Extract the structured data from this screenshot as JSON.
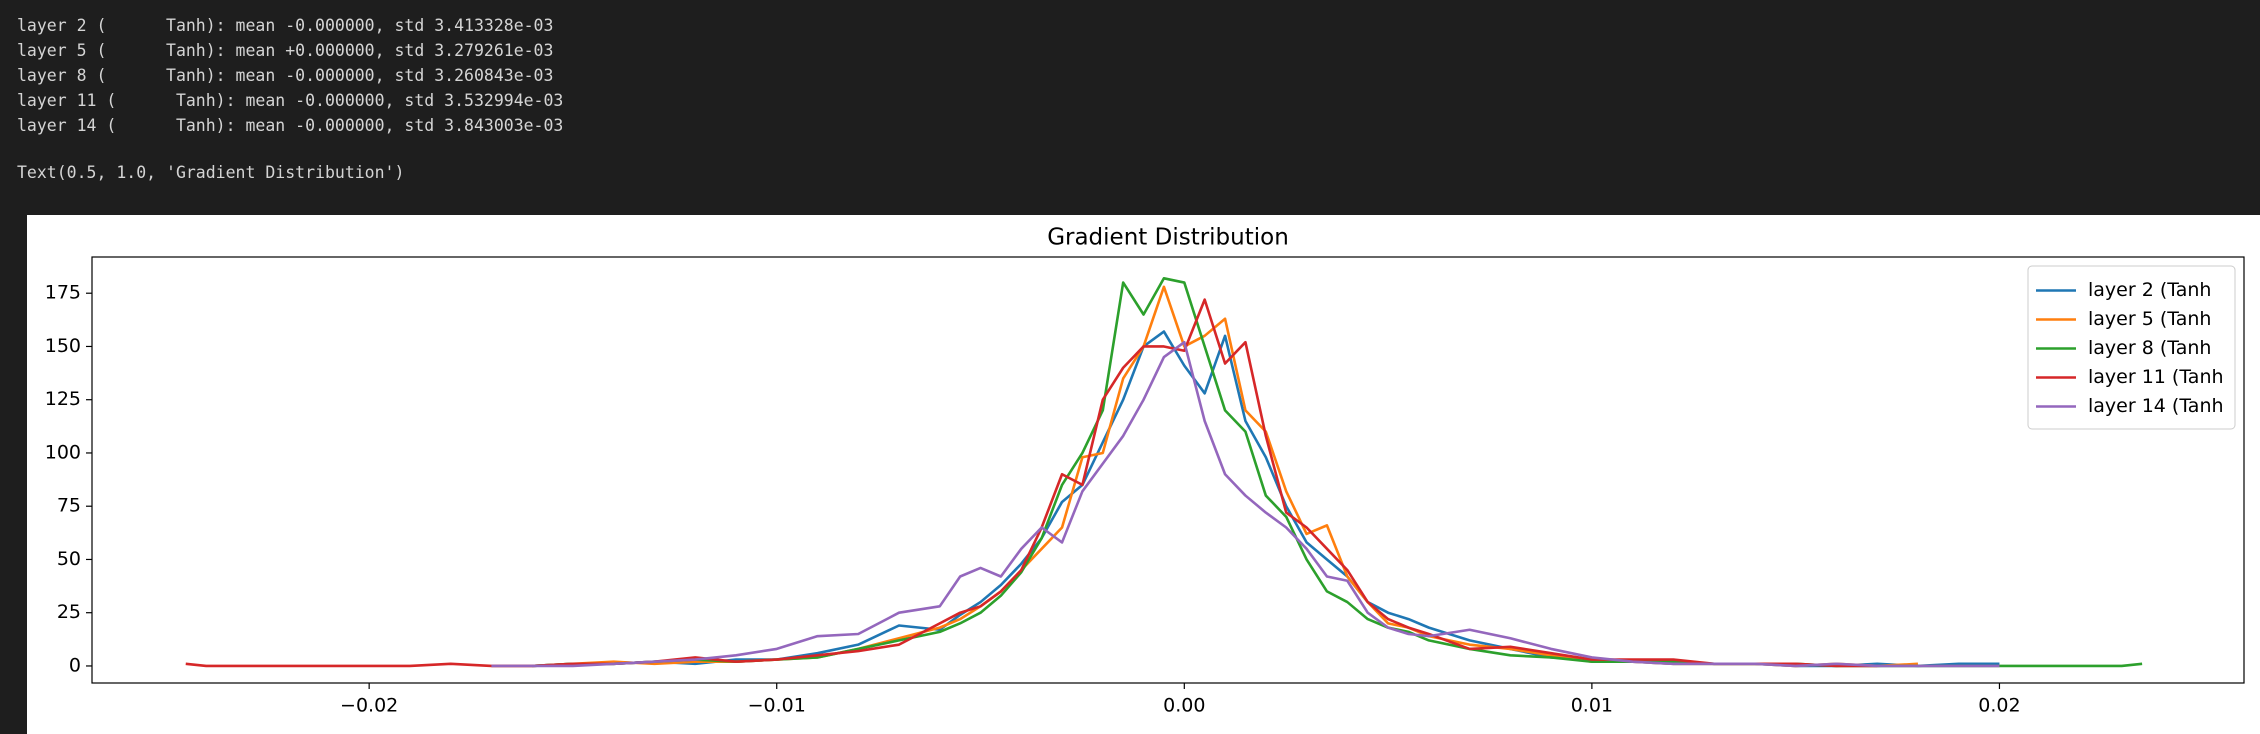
{
  "output": {
    "lines": [
      "layer 2 (      Tanh): mean -0.000000, std 3.413328e-03",
      "layer 5 (      Tanh): mean +0.000000, std 3.279261e-03",
      "layer 8 (      Tanh): mean -0.000000, std 3.260843e-03",
      "layer 11 (      Tanh): mean -0.000000, std 3.532994e-03",
      "layer 14 (      Tanh): mean -0.000000, std 3.843003e-03"
    ],
    "result": "Text(0.5, 1.0, 'Gradient Distribution')"
  },
  "chart_data": {
    "type": "line",
    "title": "Gradient Distribution",
    "xlim": [
      -0.0268,
      0.026
    ],
    "ylim": [
      -8,
      192
    ],
    "xticks": [
      {
        "value": -0.02,
        "label": "−0.02"
      },
      {
        "value": -0.01,
        "label": "−0.01"
      },
      {
        "value": 0,
        "label": "0.00"
      },
      {
        "value": 0.01,
        "label": "0.01"
      },
      {
        "value": 0.02,
        "label": "0.02"
      }
    ],
    "yticks": [
      0,
      25,
      50,
      75,
      100,
      125,
      150,
      175
    ],
    "legend": "upper right",
    "series": [
      {
        "name": "layer 2 (Tanh",
        "color": "#1f77b4",
        "x": [
          -0.016,
          -0.015,
          -0.014,
          -0.013,
          -0.012,
          -0.011,
          -0.01,
          -0.009,
          -0.008,
          -0.007,
          -0.006,
          -0.0055,
          -0.005,
          -0.0045,
          -0.004,
          -0.0035,
          -0.003,
          -0.0025,
          -0.002,
          -0.0015,
          -0.001,
          -0.0005,
          0,
          0.0005,
          0.001,
          0.0015,
          0.002,
          0.0025,
          0.003,
          0.0035,
          0.004,
          0.0045,
          0.005,
          0.0055,
          0.006,
          0.007,
          0.008,
          0.009,
          0.01,
          0.011,
          0.012,
          0.013,
          0.014,
          0.015,
          0.016,
          0.017,
          0.018,
          0.019,
          0.02
        ],
        "values": [
          0,
          1,
          1,
          2,
          1,
          3,
          3,
          6,
          10,
          19,
          17,
          24,
          30,
          38,
          48,
          60,
          77,
          85,
          105,
          125,
          150,
          157,
          141,
          128,
          155,
          115,
          98,
          75,
          58,
          50,
          42,
          30,
          25,
          22,
          18,
          12,
          8,
          4,
          3,
          2,
          1,
          1,
          1,
          0,
          0,
          1,
          0,
          1,
          1
        ]
      },
      {
        "name": "layer 5 (Tanh",
        "color": "#ff7f0e",
        "x": [
          -0.017,
          -0.016,
          -0.015,
          -0.014,
          -0.013,
          -0.012,
          -0.011,
          -0.01,
          -0.009,
          -0.008,
          -0.007,
          -0.006,
          -0.0055,
          -0.005,
          -0.0045,
          -0.004,
          -0.0035,
          -0.003,
          -0.0025,
          -0.002,
          -0.0015,
          -0.001,
          -0.0005,
          0,
          0.0005,
          0.001,
          0.0015,
          0.002,
          0.0025,
          0.003,
          0.0035,
          0.004,
          0.0045,
          0.005,
          0.0055,
          0.006,
          0.007,
          0.008,
          0.009,
          0.01,
          0.011,
          0.012,
          0.013,
          0.014,
          0.015,
          0.016,
          0.017,
          0.018
        ],
        "values": [
          0,
          0,
          1,
          2,
          1,
          2,
          2,
          3,
          4,
          8,
          13,
          18,
          22,
          28,
          35,
          45,
          55,
          65,
          98,
          100,
          135,
          150,
          178,
          150,
          155,
          163,
          120,
          110,
          82,
          62,
          66,
          42,
          30,
          20,
          18,
          14,
          10,
          8,
          5,
          2,
          2,
          1,
          1,
          1,
          0,
          1,
          0,
          1
        ]
      },
      {
        "name": "layer 8 (Tanh",
        "color": "#2ca02c",
        "x": [
          -0.016,
          -0.015,
          -0.014,
          -0.013,
          -0.012,
          -0.011,
          -0.01,
          -0.009,
          -0.008,
          -0.007,
          -0.006,
          -0.0055,
          -0.005,
          -0.0045,
          -0.004,
          -0.0035,
          -0.003,
          -0.0025,
          -0.002,
          -0.0015,
          -0.001,
          -0.0005,
          0,
          0.0005,
          0.001,
          0.0015,
          0.002,
          0.0025,
          0.003,
          0.0035,
          0.004,
          0.0045,
          0.005,
          0.0055,
          0.006,
          0.007,
          0.008,
          0.009,
          0.01,
          0.011,
          0.012,
          0.013,
          0.014,
          0.015,
          0.016,
          0.017,
          0.018,
          0.019,
          0.02,
          0.021,
          0.022,
          0.023,
          0.0235
        ],
        "values": [
          0,
          1,
          1,
          2,
          3,
          2,
          3,
          4,
          8,
          12,
          16,
          20,
          25,
          33,
          44,
          60,
          85,
          100,
          120,
          180,
          165,
          182,
          180,
          150,
          120,
          110,
          80,
          70,
          50,
          35,
          30,
          22,
          18,
          16,
          12,
          8,
          5,
          4,
          2,
          2,
          2,
          1,
          1,
          1,
          0,
          0,
          0,
          0,
          0,
          0,
          0,
          0,
          1
        ]
      },
      {
        "name": "layer 11 (Tanh",
        "color": "#d62728",
        "x": [
          -0.0245,
          -0.024,
          -0.023,
          -0.022,
          -0.021,
          -0.02,
          -0.019,
          -0.018,
          -0.017,
          -0.016,
          -0.015,
          -0.014,
          -0.013,
          -0.012,
          -0.011,
          -0.01,
          -0.009,
          -0.008,
          -0.007,
          -0.006,
          -0.0055,
          -0.005,
          -0.0045,
          -0.004,
          -0.0035,
          -0.003,
          -0.0025,
          -0.002,
          -0.0015,
          -0.001,
          -0.0005,
          0,
          0.0005,
          0.001,
          0.0015,
          0.002,
          0.0025,
          0.003,
          0.0035,
          0.004,
          0.0045,
          0.005,
          0.0055,
          0.006,
          0.007,
          0.008,
          0.009,
          0.01,
          0.011,
          0.012,
          0.013,
          0.014,
          0.015,
          0.016,
          0.017
        ],
        "values": [
          1,
          0,
          0,
          0,
          0,
          0,
          0,
          1,
          0,
          0,
          1,
          1,
          2,
          4,
          2,
          3,
          5,
          7,
          10,
          20,
          25,
          28,
          35,
          45,
          65,
          90,
          85,
          125,
          140,
          150,
          150,
          148,
          172,
          142,
          152,
          108,
          72,
          65,
          55,
          45,
          30,
          22,
          18,
          15,
          8,
          9,
          6,
          3,
          3,
          3,
          1,
          1,
          1,
          0,
          0
        ]
      },
      {
        "name": "layer 14 (Tanh",
        "color": "#9467bd",
        "x": [
          -0.017,
          -0.016,
          -0.015,
          -0.014,
          -0.013,
          -0.012,
          -0.011,
          -0.01,
          -0.009,
          -0.008,
          -0.007,
          -0.006,
          -0.0055,
          -0.005,
          -0.0045,
          -0.004,
          -0.0035,
          -0.003,
          -0.0025,
          -0.002,
          -0.0015,
          -0.001,
          -0.0005,
          0,
          0.0005,
          0.001,
          0.0015,
          0.002,
          0.0025,
          0.003,
          0.0035,
          0.004,
          0.0045,
          0.005,
          0.0055,
          0.006,
          0.007,
          0.008,
          0.009,
          0.01,
          0.011,
          0.012,
          0.013,
          0.014,
          0.015,
          0.016,
          0.017,
          0.018,
          0.019,
          0.02
        ],
        "values": [
          0,
          0,
          0,
          1,
          2,
          3,
          5,
          8,
          14,
          15,
          25,
          28,
          42,
          46,
          42,
          55,
          65,
          58,
          82,
          95,
          108,
          125,
          145,
          152,
          115,
          90,
          80,
          72,
          65,
          55,
          42,
          40,
          25,
          18,
          15,
          14,
          17,
          13,
          8,
          4,
          2,
          1,
          1,
          1,
          0,
          1,
          0,
          0,
          0,
          0
        ]
      }
    ]
  }
}
